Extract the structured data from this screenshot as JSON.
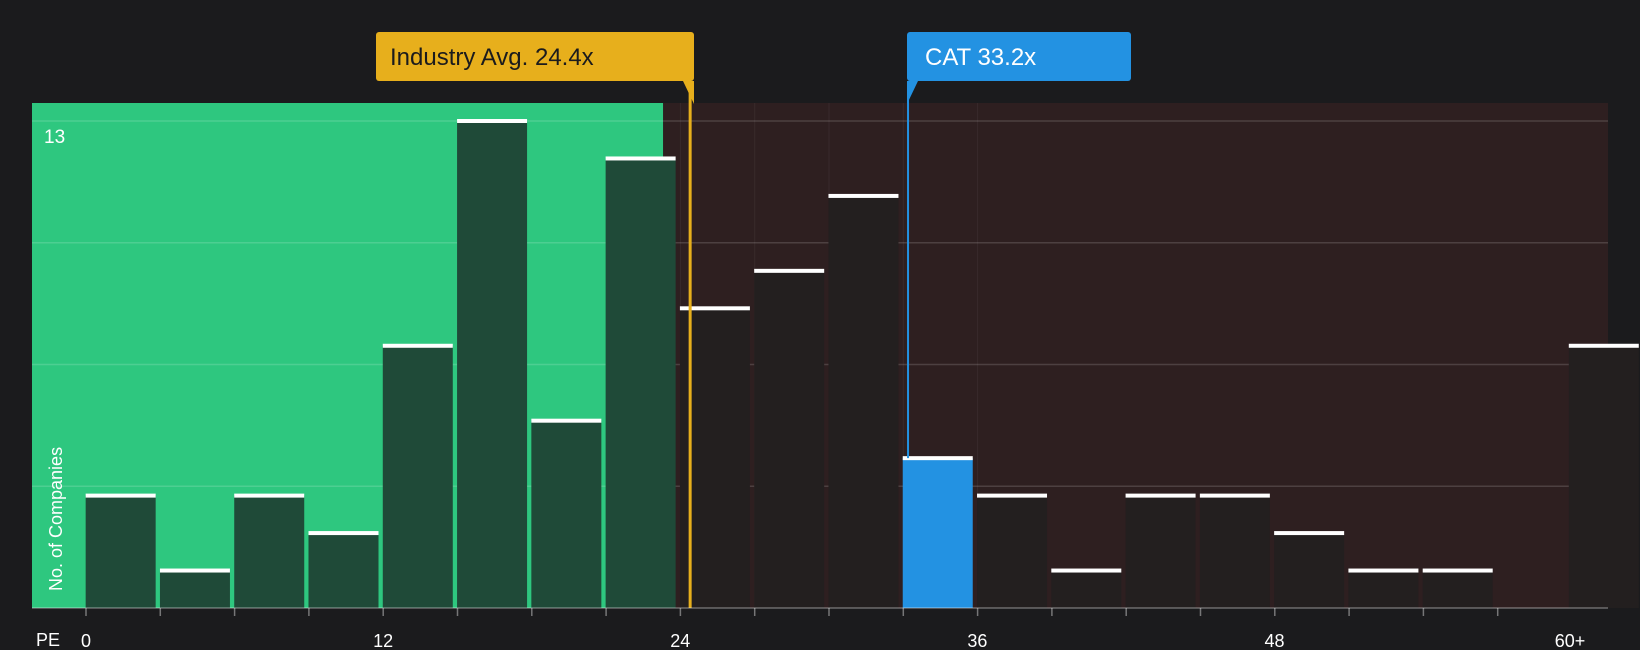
{
  "chart_data": {
    "type": "bar",
    "bin_width": 2.4,
    "x_ticks": [
      {
        "value": 0,
        "label": "0"
      },
      {
        "value": 12,
        "label": "12"
      },
      {
        "value": 24,
        "label": "24"
      },
      {
        "value": 36,
        "label": "36"
      },
      {
        "value": 48,
        "label": "48"
      },
      {
        "value": 60,
        "label": "60+"
      }
    ],
    "xlabel": "PE",
    "ylabel": "No. of Companies",
    "ylim": [
      0,
      13
    ],
    "y_max_label": "13",
    "grid": true,
    "bins": [
      {
        "x": 1.4,
        "value": 3
      },
      {
        "x": 4.4,
        "value": 1
      },
      {
        "x": 7.4,
        "value": 3
      },
      {
        "x": 10.4,
        "value": 2
      },
      {
        "x": 13.4,
        "value": 7
      },
      {
        "x": 16.4,
        "value": 13
      },
      {
        "x": 19.4,
        "value": 5
      },
      {
        "x": 22.4,
        "value": 12
      },
      {
        "x": 25.4,
        "value": 8
      },
      {
        "x": 28.4,
        "value": 9
      },
      {
        "x": 31.4,
        "value": 11
      },
      {
        "x": 34.4,
        "value": 4,
        "highlight": true
      },
      {
        "x": 37.4,
        "value": 3
      },
      {
        "x": 40.4,
        "value": 1
      },
      {
        "x": 43.4,
        "value": 3
      },
      {
        "x": 46.4,
        "value": 3
      },
      {
        "x": 49.4,
        "value": 2
      },
      {
        "x": 52.4,
        "value": 1
      },
      {
        "x": 55.4,
        "value": 1
      },
      {
        "x": 61.3,
        "value": 7
      }
    ],
    "industry_avg": {
      "value": 24.4,
      "label": "Industry Avg. 24.4x"
    },
    "company": {
      "value": 33.2,
      "label": "CAT 33.2x"
    },
    "colors": {
      "background": "#1b1b1d",
      "below_avg_region": "#2ec77f",
      "above_avg_region": "#2e1f20",
      "bar_below": "#1f4a38",
      "bar_above": "#231f1f",
      "bar_highlight": "#2392e2",
      "bar_cap": "#ffffff",
      "industry_callout": "#e7af1c",
      "company_callout": "#2392e2"
    }
  }
}
